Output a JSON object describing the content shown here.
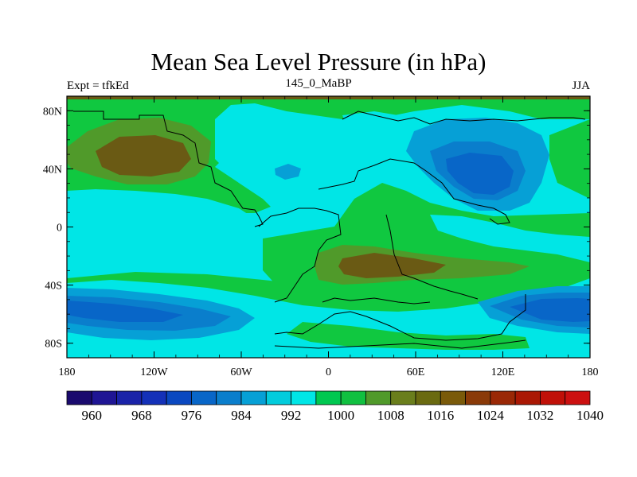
{
  "title": "Mean Sea Level Pressure (in hPa)",
  "left_label": "Expt = tfkEd",
  "center_label": "145_0_MaBP",
  "right_label": "JJA",
  "axes": {
    "lon_ticks": [
      {
        "value": -180,
        "label": "180"
      },
      {
        "value": -120,
        "label": "120W"
      },
      {
        "value": -60,
        "label": "60W"
      },
      {
        "value": 0,
        "label": "0"
      },
      {
        "value": 60,
        "label": "60E"
      },
      {
        "value": 120,
        "label": "120E"
      },
      {
        "value": 180,
        "label": "180"
      }
    ],
    "lat_ticks": [
      {
        "value": 80,
        "label": "80N"
      },
      {
        "value": 40,
        "label": "40N"
      },
      {
        "value": 0,
        "label": "0"
      },
      {
        "value": -40,
        "label": "40S"
      },
      {
        "value": -80,
        "label": "80S"
      }
    ],
    "lon_range": [
      -180,
      180
    ],
    "lat_range": [
      -90,
      90
    ]
  },
  "colorbar": {
    "colors": [
      "#1a0a6e",
      "#1f1594",
      "#1a23a8",
      "#1431b8",
      "#0a48c0",
      "#0866c8",
      "#0a7ecc",
      "#06a0d6",
      "#02ccdc",
      "#00e6e6",
      "#00c850",
      "#10c040",
      "#509a2a",
      "#6a7e1c",
      "#6a6a10",
      "#7a5a0a",
      "#8a3a08",
      "#9a2806",
      "#aa1804",
      "#c01008",
      "#cc1010"
    ],
    "labels": [
      {
        "index": 1,
        "text": "960"
      },
      {
        "index": 3,
        "text": "968"
      },
      {
        "index": 5,
        "text": "976"
      },
      {
        "index": 7,
        "text": "984"
      },
      {
        "index": 9,
        "text": "992"
      },
      {
        "index": 11,
        "text": "1000"
      },
      {
        "index": 13,
        "text": "1008"
      },
      {
        "index": 15,
        "text": "1016"
      },
      {
        "index": 17,
        "text": "1024"
      },
      {
        "index": 19,
        "text": "1032"
      },
      {
        "index": 21,
        "text": "1040"
      }
    ]
  },
  "colors": {
    "ocean_cyan": "#00e6e6",
    "pressure_green": "#10c840",
    "high_olive": "#5a7a1c",
    "high_brown": "#6a5a14",
    "low_blue_light": "#06a0d6",
    "low_blue_mid": "#0a7ecc",
    "low_blue_dark": "#0866c8"
  }
}
